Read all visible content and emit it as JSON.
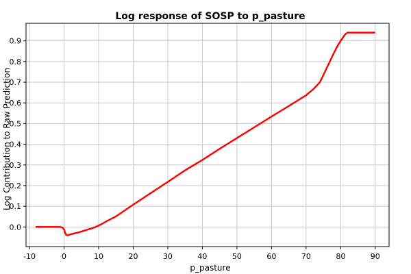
{
  "chart_data": {
    "type": "line",
    "title": "Log response of SOSP to p_pasture",
    "xlabel": "p_pasture",
    "ylabel": "Log Contribution to Raw Prediction",
    "xlim": [
      -11,
      94
    ],
    "ylim": [
      -0.095,
      0.985
    ],
    "xticks": [
      -10,
      0,
      10,
      20,
      30,
      40,
      50,
      60,
      70,
      80,
      90
    ],
    "yticks": [
      0.0,
      0.1,
      0.2,
      0.3,
      0.4,
      0.5,
      0.6,
      0.7,
      0.8,
      0.9
    ],
    "xtick_labels": [
      "-10",
      "0",
      "10",
      "20",
      "30",
      "40",
      "50",
      "60",
      "70",
      "80",
      "90"
    ],
    "ytick_labels": [
      "0.0",
      "0.1",
      "0.2",
      "0.3",
      "0.4",
      "0.5",
      "0.6",
      "0.7",
      "0.8",
      "0.9"
    ],
    "grid": true,
    "series": [
      {
        "color": "#ff0000",
        "x": [
          -8,
          -7,
          -6,
          -5,
          -4,
          -3,
          -2,
          -1,
          -0.5,
          0,
          0.3,
          0.6,
          1,
          2,
          3,
          4,
          5,
          6,
          7,
          8,
          9,
          10,
          11,
          12,
          15,
          20,
          25,
          30,
          35,
          40,
          45,
          50,
          55,
          60,
          65,
          70,
          72,
          74,
          75,
          76,
          77,
          78,
          79,
          80,
          81,
          81.5,
          82,
          82.5,
          83,
          85,
          87,
          90
        ],
        "y": [
          0.0,
          0.0,
          0.0,
          0.0,
          0.0,
          0.0,
          0.0,
          0.0,
          -0.003,
          -0.012,
          -0.028,
          -0.038,
          -0.04,
          -0.035,
          -0.031,
          -0.027,
          -0.022,
          -0.017,
          -0.012,
          -0.007,
          -0.001,
          0.007,
          0.015,
          0.025,
          0.051,
          0.108,
          0.163,
          0.218,
          0.274,
          0.324,
          0.378,
          0.43,
          0.482,
          0.534,
          0.585,
          0.637,
          0.665,
          0.7,
          0.735,
          0.77,
          0.805,
          0.84,
          0.873,
          0.9,
          0.925,
          0.935,
          0.94,
          0.94,
          0.94,
          0.94,
          0.94,
          0.94
        ]
      }
    ]
  }
}
